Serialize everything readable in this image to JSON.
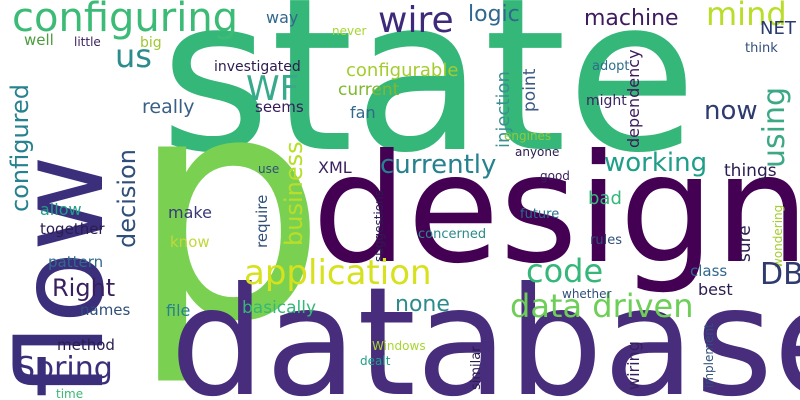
{
  "colors": {
    "background": "#ffffff",
    "palette": [
      "#440154",
      "#482878",
      "#3e4989",
      "#31688e",
      "#26828e",
      "#1f9e89",
      "#35b779",
      "#6ece58",
      "#b5de2b",
      "#fde725"
    ]
  },
  "words": [
    "state",
    "p",
    "design",
    "database",
    "flow",
    "configuring",
    "wire",
    "logic",
    "machine",
    "mind",
    "way",
    "never",
    "NET",
    "well",
    "little",
    "big",
    "us",
    "WF",
    "configurable",
    "investigated",
    "adopt",
    "think",
    "current",
    "really",
    "seems",
    "injection",
    "point",
    "might",
    "now",
    "using",
    "configured",
    "business",
    "fan",
    "engines",
    "anyone",
    "dependency",
    "currently",
    "working",
    "decision",
    "XML",
    "use",
    "good",
    "things",
    "allow",
    "make",
    "bad",
    "together",
    "require",
    "future",
    "concerned",
    "rules",
    "know",
    "wondering",
    "suggestions",
    "sure",
    "application",
    "code",
    "DB",
    "Right",
    "class",
    "pattern",
    "data driven",
    "best",
    "none",
    "whether",
    "names",
    "file",
    "basically",
    "implement",
    "method",
    "Spring",
    "Windows",
    "similar",
    "wiring",
    "dealt",
    "time"
  ]
}
